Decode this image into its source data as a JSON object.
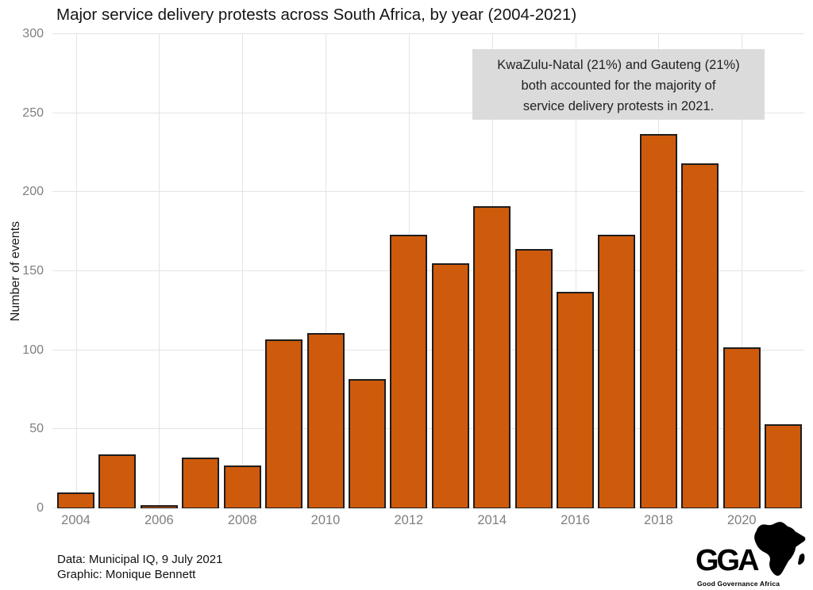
{
  "chart_data": {
    "type": "bar",
    "title": "Major service delivery protests across South Africa, by year (2004-2021)",
    "xlabel": "",
    "ylabel": "Number of events",
    "categories": [
      2004,
      2005,
      2006,
      2007,
      2008,
      2009,
      2010,
      2011,
      2012,
      2013,
      2014,
      2015,
      2016,
      2017,
      2018,
      2019,
      2020,
      2021
    ],
    "values": [
      10,
      34,
      2,
      32,
      27,
      107,
      111,
      82,
      173,
      155,
      191,
      164,
      137,
      173,
      237,
      218,
      102,
      53
    ],
    "ylim": [
      0,
      300
    ],
    "yticks": [
      0,
      50,
      100,
      150,
      200,
      250,
      300
    ],
    "xticks": [
      2004,
      2006,
      2008,
      2010,
      2012,
      2014,
      2016,
      2018,
      2020
    ],
    "grid": true,
    "legend": "none",
    "colors": {
      "bar_fill": "#CE5A0C",
      "bar_border": "#1D1D1D",
      "grid": "#E4E4E4",
      "tick_text": "#7F7F7F"
    }
  },
  "annotation": {
    "text": "KwaZulu-Natal (21%) and Gauteng (21%)\nboth accounted for the majority of\nservice delivery protests in 2021.",
    "bg": "#DBDBDB"
  },
  "footer": {
    "data_source": "Data: Municipal IQ, 9 July 2021",
    "credit": "Graphic: Monique Bennett"
  },
  "logo": {
    "acronym": "GGA",
    "caption": "Good Governance Africa"
  }
}
